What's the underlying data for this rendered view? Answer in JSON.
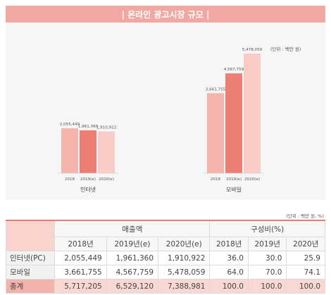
{
  "title": "| 온라인 광고시장 규모 |",
  "unit_chart": "(단위 : 백만 원)",
  "unit_table": "(단위 : 백만 원, %)",
  "colors": {
    "banner": "#f2a8a2",
    "bar_light": "#f5b4ab",
    "bar_mid": "#ec7e73",
    "bar_pale": "#f9cdc6"
  },
  "chart_data": [
    {
      "type": "bar",
      "xlabel": "인터넷",
      "categories": [
        "2018",
        "2019(e)",
        "2020(e)"
      ],
      "values": [
        2055449,
        1961360,
        1910922
      ],
      "value_labels": [
        "2,055,449",
        "1,961,360",
        "1,910,922"
      ],
      "ylim": [
        0,
        5800000
      ],
      "grid": false
    },
    {
      "type": "bar",
      "xlabel": "모바일",
      "categories": [
        "2018",
        "2019(e)",
        "2020(e)"
      ],
      "values": [
        3661755,
        4567759,
        5478059
      ],
      "value_labels": [
        "3,661,755",
        "4,567,759",
        "5,478,059"
      ],
      "ylim": [
        0,
        5800000
      ],
      "grid": false
    }
  ],
  "table": {
    "group_headers": [
      "매출액",
      "구성비(%)"
    ],
    "columns": [
      "2018년",
      "2019년(e)",
      "2020년(e)",
      "2018년",
      "2019년",
      "2020년"
    ],
    "rows": [
      {
        "label": "인터넷(PC)",
        "cells": [
          "2,055,449",
          "1,961,360",
          "1,910,922",
          "36.0",
          "30.0",
          "25.9"
        ]
      },
      {
        "label": "모바일",
        "cells": [
          "3,661,755",
          "4,567,759",
          "5,478,059",
          "64.0",
          "70.0",
          "74.1"
        ]
      },
      {
        "label": "총계",
        "cells": [
          "5,717,205",
          "6,529,120",
          "7,388,981",
          "100.0",
          "100.0",
          "100.0"
        ]
      }
    ]
  }
}
